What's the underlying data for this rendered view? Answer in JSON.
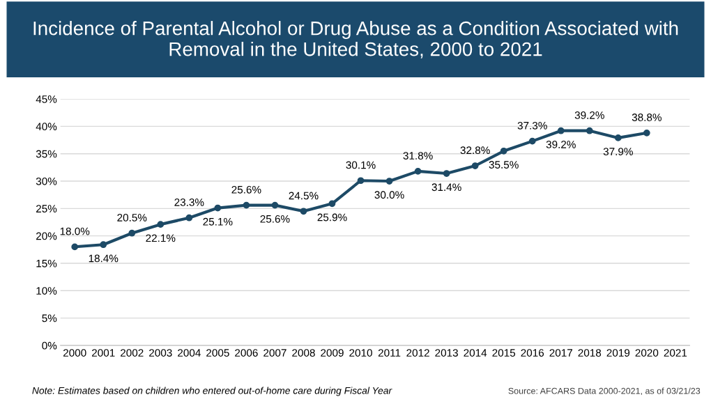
{
  "chart_data": {
    "type": "line",
    "title": "Incidence of Parental Alcohol or Drug Abuse as a Condition Associated with Removal in the United States, 2000 to 2021",
    "categories": [
      "2000",
      "2001",
      "2002",
      "2003",
      "2004",
      "2005",
      "2006",
      "2007",
      "2008",
      "2009",
      "2010",
      "2011",
      "2012",
      "2013",
      "2014",
      "2015",
      "2016",
      "2017",
      "2018",
      "2019",
      "2020",
      "2021"
    ],
    "series": [
      {
        "color": "#1d4a66",
        "values": [
          18.0,
          18.4,
          20.5,
          22.1,
          23.3,
          25.1,
          25.6,
          25.6,
          24.5,
          25.9,
          30.1,
          30.0,
          31.8,
          31.4,
          32.8,
          35.5,
          37.3,
          39.2,
          39.2,
          37.9,
          38.8,
          null
        ],
        "value_labels": [
          "18.0%",
          "18.4%",
          "20.5%",
          "22.1%",
          "23.3%",
          "25.1%",
          "25.6%",
          "25.6%",
          "24.5%",
          "25.9%",
          "30.1%",
          "30.0%",
          "31.8%",
          "31.4%",
          "32.8%",
          "35.5%",
          "37.3%",
          "39.2%",
          "39.2%",
          "37.9%",
          "38.8%",
          null
        ]
      }
    ],
    "ylim": [
      0,
      45
    ],
    "yticks": [
      {
        "value": 0,
        "label": "0%"
      },
      {
        "value": 5,
        "label": "5%"
      },
      {
        "value": 10,
        "label": "10%"
      },
      {
        "value": 15,
        "label": "15%"
      },
      {
        "value": 20,
        "label": "20%"
      },
      {
        "value": 25,
        "label": "25%"
      },
      {
        "value": 30,
        "label": "30%"
      },
      {
        "value": 35,
        "label": "35%"
      },
      {
        "value": 40,
        "label": "40%"
      },
      {
        "value": 45,
        "label": "45%"
      }
    ],
    "grid": "y",
    "marker": "circle",
    "line_style": "solid",
    "annotations": [
      "Note: Estimates based on children who entered out-of-home care during Fiscal Year",
      "Source: AFCARS Data 2000-2021, as of 03/21/23"
    ]
  }
}
